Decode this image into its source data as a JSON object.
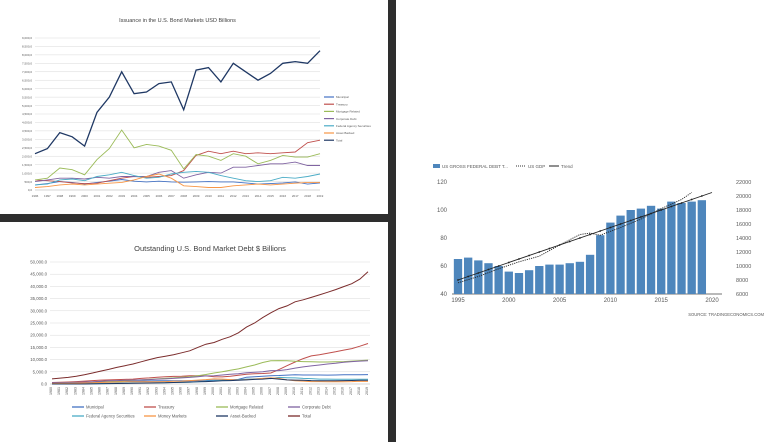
{
  "chart_data": [
    {
      "type": "line",
      "title": "Issuance in the U.S. Bond Markets USD Billions",
      "x": [
        "1996",
        "1997",
        "1998",
        "1999",
        "2000",
        "2001",
        "2002",
        "2003",
        "2004",
        "2005",
        "2006",
        "2007",
        "2008",
        "2009",
        "2010",
        "2011",
        "2012",
        "2013",
        "2014",
        "2015",
        "2016",
        "2017",
        "2018",
        "2019"
      ],
      "ylim": [
        0,
        9000
      ],
      "yticks": [
        "0,0",
        "500,0",
        "1,000,0",
        "1,500,0",
        "2,000,0",
        "2,500,0",
        "3,000,0",
        "3,500,0",
        "4,000,0",
        "4,500,0",
        "5,000,0",
        "5,500,0",
        "6,000,0",
        "6,500,0",
        "7,000,0",
        "7,500,0",
        "8,000,0",
        "8,500,0",
        "9,000,0"
      ],
      "grid": true,
      "legend": "right",
      "series": [
        {
          "name": "Municipal",
          "color": "#4472c4",
          "values": [
            300,
            380,
            500,
            450,
            350,
            450,
            520,
            620,
            520,
            480,
            520,
            480,
            460,
            480,
            500,
            480,
            480,
            420,
            350,
            380,
            420,
            480,
            350,
            420
          ]
        },
        {
          "name": "Treasury",
          "color": "#c0504d",
          "values": [
            600,
            550,
            500,
            420,
            380,
            400,
            550,
            700,
            800,
            750,
            800,
            850,
            1150,
            2050,
            2300,
            2150,
            2300,
            2150,
            2200,
            2150,
            2200,
            2250,
            2800,
            2950
          ]
        },
        {
          "name": "Mortgage Related",
          "color": "#9bbb59",
          "values": [
            600,
            700,
            1300,
            1200,
            900,
            1800,
            2450,
            3550,
            2500,
            2700,
            2600,
            2350,
            1250,
            2100,
            2000,
            1750,
            2150,
            2000,
            1550,
            1750,
            2050,
            1950,
            1950,
            2150
          ]
        },
        {
          "name": "Corporate Debt",
          "color": "#8064a2",
          "values": [
            500,
            600,
            700,
            700,
            650,
            750,
            700,
            800,
            800,
            800,
            1050,
            1150,
            700,
            900,
            1050,
            1000,
            1350,
            1350,
            1450,
            1550,
            1550,
            1650,
            1450,
            1450
          ]
        },
        {
          "name": "Federal Agency Securities",
          "color": "#4bacc6",
          "values": [
            300,
            350,
            600,
            650,
            550,
            800,
            900,
            1050,
            850,
            700,
            750,
            950,
            1050,
            1100,
            1050,
            850,
            700,
            550,
            500,
            550,
            750,
            700,
            800,
            950
          ]
        },
        {
          "name": "Asset Backed",
          "color": "#f79646",
          "values": [
            150,
            200,
            300,
            350,
            300,
            350,
            400,
            450,
            600,
            800,
            950,
            700,
            250,
            200,
            150,
            150,
            250,
            300,
            350,
            300,
            350,
            400,
            450,
            450
          ]
        },
        {
          "name": "Total",
          "color": "#1f3864",
          "values": [
            2150,
            2450,
            3400,
            3150,
            2600,
            4600,
            5500,
            7000,
            5700,
            5800,
            6300,
            6400,
            4750,
            7100,
            7250,
            6400,
            7500,
            7000,
            6500,
            6900,
            7500,
            7600,
            7500,
            8250
          ]
        }
      ]
    },
    {
      "type": "line",
      "title": "Outstanding U.S. Bond Market Debt $ Billions",
      "x": [
        "1980",
        "1981",
        "1982",
        "1983",
        "1984",
        "1985",
        "1986",
        "1987",
        "1988",
        "1989",
        "1990",
        "1991",
        "1992",
        "1993",
        "1994",
        "1995",
        "1996",
        "1997",
        "1998",
        "1999",
        "2000",
        "2001",
        "2002",
        "2003",
        "2004",
        "2005",
        "2006",
        "2007",
        "2008",
        "2009",
        "2010",
        "2011",
        "2012",
        "2013",
        "2014",
        "2015",
        "2016",
        "2017",
        "2018",
        "2019"
      ],
      "ylim": [
        0,
        50000
      ],
      "yticks": [
        "0.0",
        "5,000.0",
        "10,000.0",
        "15,000.0",
        "20,000.0",
        "25,000.0",
        "30,000.0",
        "35,000.0",
        "40,000.0",
        "45,000.0",
        "50,000.0"
      ],
      "grid": true,
      "legend": "bottom",
      "series": [
        {
          "name": "Municipal",
          "color": "#4472c4",
          "values": [
            400,
            420,
            470,
            520,
            580,
            700,
            800,
            900,
            950,
            1000,
            1100,
            1200,
            1250,
            1350,
            1350,
            1300,
            1300,
            1350,
            1450,
            1550,
            1500,
            1600,
            1750,
            1900,
            2800,
            3000,
            3200,
            3400,
            3500,
            3650,
            3750,
            3700,
            3700,
            3700,
            3650,
            3700,
            3750,
            3800,
            3800,
            3850
          ]
        },
        {
          "name": "Treasury",
          "color": "#c0504d",
          "values": [
            600,
            700,
            800,
            1000,
            1200,
            1400,
            1600,
            1700,
            1800,
            1900,
            2000,
            2300,
            2500,
            2800,
            3000,
            3100,
            3200,
            3400,
            3400,
            3300,
            3000,
            2900,
            3200,
            3600,
            4000,
            4200,
            4300,
            4500,
            5900,
            7500,
            9000,
            10400,
            11500,
            12000,
            12600,
            13200,
            13900,
            14500,
            15500,
            16600
          ]
        },
        {
          "name": "Mortgage Related",
          "color": "#9bbb59",
          "values": [
            100,
            150,
            200,
            300,
            400,
            500,
            700,
            900,
            1100,
            1300,
            1500,
            1700,
            1900,
            2100,
            2300,
            2500,
            2800,
            3000,
            3400,
            3900,
            4500,
            5000,
            5600,
            6200,
            7000,
            7800,
            8800,
            9500,
            9600,
            9500,
            9300,
            9200,
            9100,
            9000,
            9000,
            9100,
            9200,
            9400,
            9600,
            9800
          ]
        },
        {
          "name": "Corporate Debt",
          "color": "#8064a2",
          "values": [
            500,
            550,
            600,
            700,
            800,
            900,
            1100,
            1300,
            1400,
            1500,
            1600,
            1700,
            1800,
            2000,
            2100,
            2300,
            2500,
            2700,
            3000,
            3300,
            3400,
            3700,
            4000,
            4200,
            4600,
            4800,
            5000,
            5500,
            5500,
            5900,
            6500,
            7000,
            7400,
            7800,
            8200,
            8500,
            8900,
            9200,
            9400,
            9500
          ]
        },
        {
          "name": "Federal Agency Securities",
          "color": "#4bacc6",
          "values": [
            200,
            230,
            250,
            270,
            290,
            300,
            310,
            320,
            350,
            380,
            400,
            420,
            450,
            500,
            560,
            600,
            650,
            700,
            900,
            1200,
            1300,
            1500,
            1600,
            1800,
            2000,
            2100,
            2200,
            2200,
            2700,
            2600,
            2500,
            2300,
            2200,
            2000,
            2000,
            1950,
            1950,
            1950,
            1950,
            1950
          ]
        },
        {
          "name": "Money Markets",
          "color": "#f79646",
          "values": [
            200,
            250,
            300,
            350,
            450,
            500,
            600,
            700,
            800,
            900,
            900,
            900,
            900,
            900,
            1000,
            1100,
            1200,
            1400,
            1600,
            1800,
            2100,
            2000,
            1800,
            1600,
            1800,
            2000,
            2300,
            2500,
            2300,
            1700,
            1300,
            1200,
            1000,
            1000,
            950,
            1000,
            950,
            1000,
            1100,
            1050
          ]
        },
        {
          "name": "Asset-Backed",
          "color": "#1f3864",
          "values": [
            0,
            0,
            0,
            0,
            0,
            50,
            100,
            150,
            200,
            250,
            300,
            350,
            400,
            450,
            500,
            600,
            700,
            800,
            900,
            1000,
            1100,
            1300,
            1400,
            1500,
            1700,
            1900,
            2000,
            2300,
            2000,
            1700,
            1600,
            1500,
            1400,
            1350,
            1300,
            1350,
            1400,
            1450,
            1500,
            1550
          ]
        },
        {
          "name": "Total",
          "color": "#7b2c2c",
          "values": [
            2100,
            2400,
            2700,
            3200,
            3800,
            4500,
            5300,
            6000,
            6800,
            7500,
            8200,
            9100,
            10000,
            10800,
            11400,
            12000,
            12800,
            13600,
            15000,
            16300,
            17000,
            18300,
            19400,
            21000,
            23300,
            25000,
            27200,
            29200,
            30900,
            32000,
            33700,
            34500,
            35500,
            36500,
            37600,
            38700,
            39900,
            41100,
            43000,
            46000
          ]
        }
      ]
    },
    {
      "type": "bar",
      "title": "",
      "x": [
        1995,
        1996,
        1997,
        1998,
        1999,
        2000,
        2001,
        2002,
        2003,
        2004,
        2005,
        2006,
        2007,
        2008,
        2009,
        2010,
        2011,
        2012,
        2013,
        2014,
        2015,
        2016,
        2017,
        2018,
        2019
      ],
      "ylim": [
        40,
        120
      ],
      "yticks": [
        "40",
        "60",
        "80",
        "100",
        "120"
      ],
      "y2lim": [
        6000,
        22000
      ],
      "y2ticks": [
        "6000",
        "8000",
        "10000",
        "12000",
        "14000",
        "16000",
        "18000",
        "20000",
        "22000"
      ],
      "xticks": [
        "1995",
        "2000",
        "2005",
        "2010",
        "2015",
        "2020"
      ],
      "legend": "top-left",
      "legend_labels": [
        "US GROSS FEDERAL DEBT T...",
        "US GDP",
        "Trend"
      ],
      "bar_color": "#4e86bc",
      "source": "SOURCE: TRADINGECONOMICS.COM",
      "series": [
        {
          "name": "US GROSS FEDERAL DEBT T...",
          "axis": "left",
          "values": [
            65,
            66,
            64,
            62,
            60,
            56,
            55,
            57,
            60,
            61,
            61,
            62,
            63,
            68,
            82,
            91,
            96,
            100,
            101,
            103,
            101,
            106,
            105,
            106,
            107
          ]
        },
        {
          "name": "US GDP",
          "axis": "right",
          "style": "dotted",
          "x": [
            1995,
            1997,
            1999,
            2001,
            2003,
            2005,
            2007,
            2008,
            2009,
            2011,
            2013,
            2015,
            2017,
            2018
          ],
          "values": [
            7600,
            8500,
            9600,
            10600,
            11400,
            13000,
            14500,
            14700,
            14400,
            15500,
            16700,
            18200,
            19500,
            20500
          ]
        },
        {
          "name": "Trend",
          "axis": "right",
          "style": "solid-dots",
          "x": [
            1995,
            2020
          ],
          "values": [
            8000,
            20500
          ]
        }
      ]
    }
  ]
}
